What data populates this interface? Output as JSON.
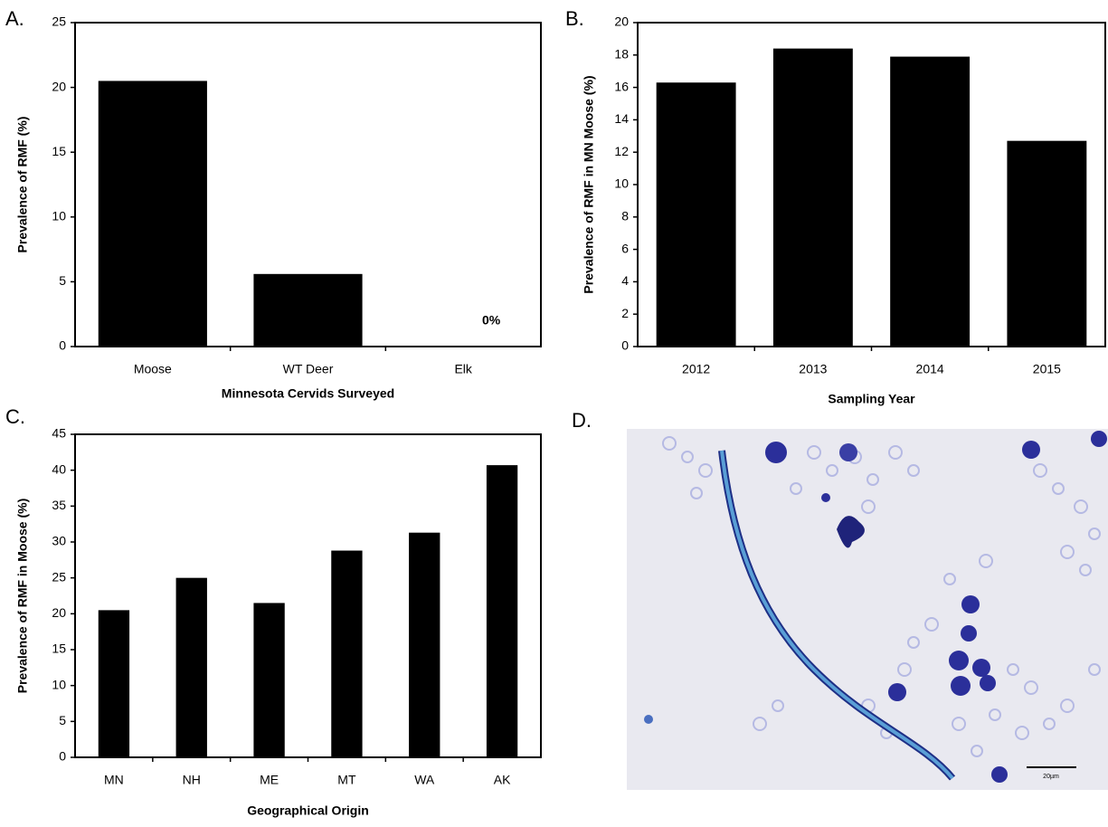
{
  "chart_data": [
    {
      "type": "bar",
      "label": "A.",
      "xlabel": "Minnesota Cervids Surveyed",
      "ylabel": "Prevalence of RMF (%)",
      "categories": [
        "Moose",
        "WT Deer",
        "Elk"
      ],
      "values": [
        20.5,
        5.6,
        0
      ],
      "value_labels": [
        null,
        null,
        "0%"
      ],
      "color": "#000000",
      "ylim": [
        0,
        25
      ],
      "yticks": [
        0,
        5,
        10,
        15,
        20,
        25
      ],
      "grid": false
    },
    {
      "type": "bar",
      "label": "B.",
      "xlabel": "Sampling Year",
      "ylabel": "Prevalence of RMF in MN Moose (%)",
      "categories": [
        "2012",
        "2013",
        "2014",
        "2015"
      ],
      "values": [
        16.3,
        18.4,
        17.9,
        12.7
      ],
      "color": "#000000",
      "ylim": [
        0,
        20
      ],
      "yticks": [
        0,
        2,
        4,
        6,
        8,
        10,
        12,
        14,
        16,
        18,
        20
      ],
      "grid": false
    },
    {
      "type": "bar",
      "label": "C.",
      "xlabel": "Geographical Origin",
      "ylabel": "Prevalence of RMF in Moose (%)",
      "categories": [
        "MN",
        "NH",
        "ME",
        "MT",
        "WA",
        "AK"
      ],
      "values": [
        20.5,
        25,
        21.5,
        28.8,
        31.3,
        40.7
      ],
      "color": "#000000",
      "ylim": [
        0,
        45
      ],
      "yticks": [
        0,
        5,
        10,
        15,
        20,
        25,
        30,
        35,
        40,
        45
      ],
      "grid": false
    }
  ],
  "image_panel": {
    "label": "D.",
    "scale_bar": "20µm"
  }
}
